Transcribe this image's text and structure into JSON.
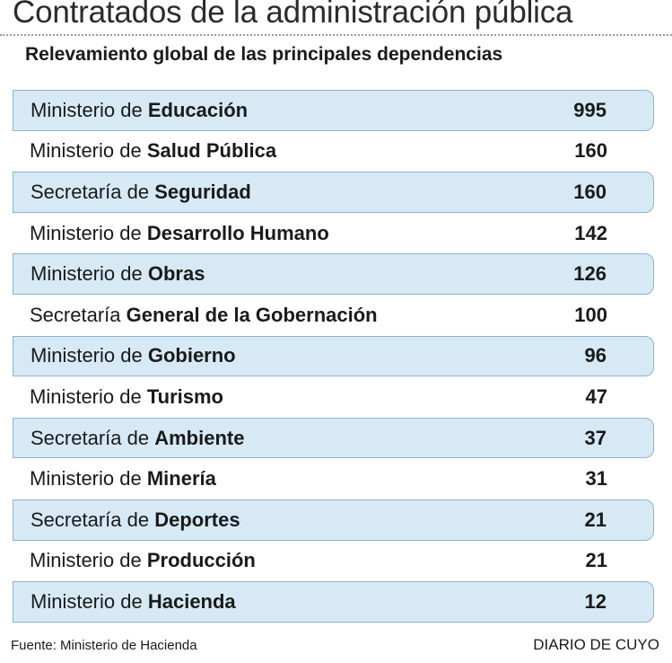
{
  "title": "Contratados de la administración pública",
  "subtitle": "Relevamiento global de las principales dependencias",
  "source": "Fuente: Ministerio de Hacienda",
  "brand": "DIARIO DE CUYO",
  "colors": {
    "row_shade": "#d6e9f5",
    "row_border": "#8fb3cc"
  },
  "chart_data": {
    "type": "table",
    "title": "Contratados de la administración pública",
    "rows": [
      {
        "prefix": "Ministerio de",
        "name": "Educación",
        "value": 995
      },
      {
        "prefix": "Ministerio de",
        "name": "Salud Pública",
        "value": 160
      },
      {
        "prefix": "Secretaría de",
        "name": "Seguridad",
        "value": 160
      },
      {
        "prefix": "Ministerio de",
        "name": "Desarrollo Humano",
        "value": 142
      },
      {
        "prefix": "Ministerio de",
        "name": "Obras",
        "value": 126
      },
      {
        "prefix": "Secretaría",
        "name": "General de la Gobernación",
        "value": 100
      },
      {
        "prefix": "Ministerio de",
        "name": "Gobierno",
        "value": 96
      },
      {
        "prefix": "Ministerio de",
        "name": "Turismo",
        "value": 47
      },
      {
        "prefix": "Secretaría de",
        "name": "Ambiente",
        "value": 37
      },
      {
        "prefix": "Ministerio de",
        "name": "Minería",
        "value": 31
      },
      {
        "prefix": "Secretaría de",
        "name": "Deportes",
        "value": 21
      },
      {
        "prefix": "Ministerio de",
        "name": "Producción",
        "value": 21
      },
      {
        "prefix": "Ministerio de",
        "name": "Hacienda",
        "value": 12
      }
    ]
  }
}
